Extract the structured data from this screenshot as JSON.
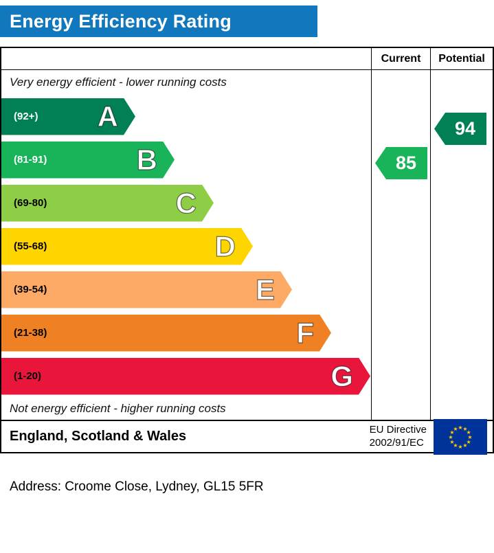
{
  "title": "Energy Efficiency Rating",
  "table": {
    "col_current": "Current",
    "col_potential": "Potential",
    "top_caption": "Very energy efficient - lower running costs",
    "bottom_caption": "Not energy efficient - higher running costs",
    "bands": [
      {
        "letter": "A",
        "range": "(92+)",
        "color": "#008054",
        "text_color": "#ffffff"
      },
      {
        "letter": "B",
        "range": "(81-91)",
        "color": "#19b459",
        "text_color": "#ffffff"
      },
      {
        "letter": "C",
        "range": "(69-80)",
        "color": "#8dce46",
        "text_color": "#000000"
      },
      {
        "letter": "D",
        "range": "(55-68)",
        "color": "#ffd500",
        "text_color": "#000000"
      },
      {
        "letter": "E",
        "range": "(39-54)",
        "color": "#fcaa65",
        "text_color": "#000000"
      },
      {
        "letter": "F",
        "range": "(21-38)",
        "color": "#ef8023",
        "text_color": "#000000"
      },
      {
        "letter": "G",
        "range": "(1-20)",
        "color": "#e9153b",
        "text_color": "#000000"
      }
    ],
    "current": {
      "label": "85",
      "color": "#19b459"
    },
    "potential": {
      "label": "94",
      "color": "#008054"
    }
  },
  "footer": {
    "region": "England, Scotland & Wales",
    "directive_line1": "EU Directive",
    "directive_line2": "2002/91/EC"
  },
  "address": "Address: Croome Close, Lydney, GL15 5FR",
  "chart_data": {
    "type": "bar",
    "title": "Energy Efficiency Rating",
    "categories": [
      "A",
      "B",
      "C",
      "D",
      "E",
      "F",
      "G"
    ],
    "ranges": [
      "92+",
      "81-91",
      "69-80",
      "55-68",
      "39-54",
      "21-38",
      "1-20"
    ],
    "band_colors": [
      "#008054",
      "#19b459",
      "#8dce46",
      "#ffd500",
      "#fcaa65",
      "#ef8023",
      "#e9153b"
    ],
    "series": [
      {
        "name": "Current",
        "value": 85,
        "band": "B",
        "color": "#19b459"
      },
      {
        "name": "Potential",
        "value": 94,
        "band": "A",
        "color": "#008054"
      }
    ],
    "top_caption": "Very energy efficient - lower running costs",
    "bottom_caption": "Not energy efficient - higher running costs",
    "region": "England, Scotland & Wales",
    "directive": "EU Directive 2002/91/EC",
    "address": "Croome Close, Lydney, GL15 5FR"
  }
}
